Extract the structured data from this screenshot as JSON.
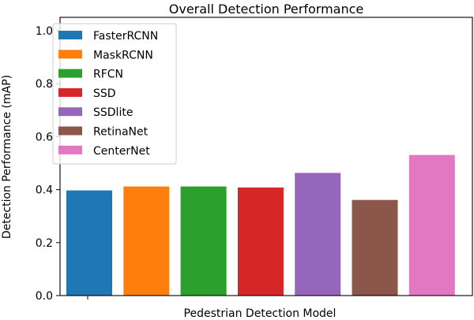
{
  "chart_data": {
    "type": "bar",
    "title": "Overall Detection Performance",
    "xlabel": "Pedestrian Detection Model",
    "ylabel": "Detection Performance (mAP)",
    "ylim": [
      0,
      1.0
    ],
    "yticks": [
      "0.0",
      "0.2",
      "0.4",
      "0.6",
      "0.8",
      "1.0"
    ],
    "grid": false,
    "legend_position": "top-left",
    "series": [
      {
        "name": "FasterRCNN",
        "value": 0.397,
        "color": "#1f77b4"
      },
      {
        "name": "MaskRCNN",
        "value": 0.412,
        "color": "#ff7f0e"
      },
      {
        "name": "RFCN",
        "value": 0.412,
        "color": "#2ca02c"
      },
      {
        "name": "SSD",
        "value": 0.408,
        "color": "#d62728"
      },
      {
        "name": "SSDlite",
        "value": 0.463,
        "color": "#9467bd"
      },
      {
        "name": "RetinaNet",
        "value": 0.361,
        "color": "#8c564b"
      },
      {
        "name": "CenterNet",
        "value": 0.531,
        "color": "#e377c2"
      }
    ]
  }
}
